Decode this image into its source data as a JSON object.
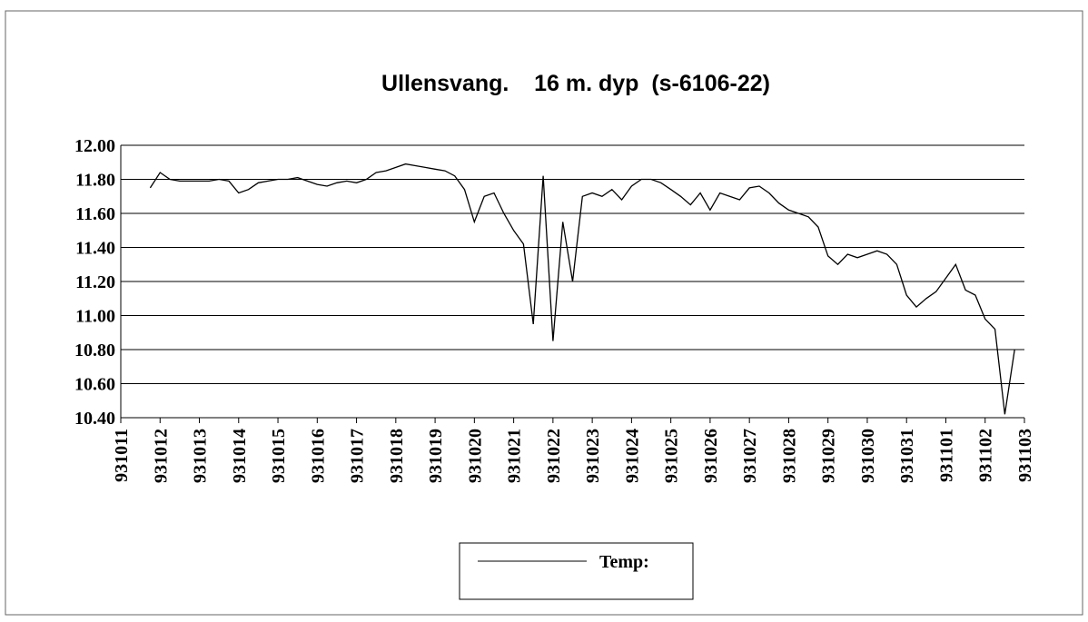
{
  "chart_data": {
    "type": "line",
    "title": "Ullensvang.    16 m. dyp  (s-6106-22)",
    "categories": [
      "931011",
      null,
      null,
      null,
      "931012",
      null,
      null,
      null,
      "931013",
      null,
      null,
      null,
      "931014",
      null,
      null,
      null,
      "931015",
      null,
      null,
      null,
      "931016",
      null,
      null,
      null,
      "931017",
      null,
      null,
      null,
      "931018",
      null,
      null,
      null,
      "931019",
      null,
      null,
      null,
      "931020",
      null,
      null,
      null,
      "931021",
      null,
      null,
      null,
      "931022",
      null,
      null,
      null,
      "931023",
      null,
      null,
      null,
      "931024",
      null,
      null,
      null,
      "931025",
      null,
      null,
      null,
      "931026",
      null,
      null,
      null,
      "931027",
      null,
      null,
      null,
      "931028",
      null,
      null,
      null,
      "931029",
      null,
      null,
      null,
      "931030",
      null,
      null,
      null,
      "931031",
      null,
      null,
      null,
      "931101",
      null,
      null,
      null,
      "931102",
      null,
      null,
      null,
      "931103"
    ],
    "series": [
      {
        "name": "Temp:",
        "color": "#000000",
        "values": [
          null,
          null,
          null,
          11.75,
          11.84,
          11.8,
          11.79,
          11.79,
          11.79,
          11.79,
          11.8,
          11.79,
          11.72,
          11.74,
          11.78,
          11.79,
          11.8,
          11.8,
          11.81,
          11.79,
          11.77,
          11.76,
          11.78,
          11.79,
          11.78,
          11.8,
          11.84,
          11.85,
          11.87,
          11.89,
          11.88,
          11.87,
          11.86,
          11.85,
          11.82,
          11.74,
          11.55,
          11.7,
          11.72,
          11.6,
          11.5,
          11.42,
          10.95,
          11.82,
          10.85,
          11.55,
          11.2,
          11.7,
          11.72,
          11.7,
          11.74,
          11.68,
          11.76,
          11.8,
          11.8,
          11.78,
          11.74,
          11.7,
          11.65,
          11.72,
          11.62,
          11.72,
          11.7,
          11.68,
          11.75,
          11.76,
          11.72,
          11.66,
          11.62,
          11.6,
          11.58,
          11.52,
          11.35,
          11.3,
          11.36,
          11.34,
          11.36,
          11.38,
          11.36,
          11.3,
          11.12,
          11.05,
          11.1,
          11.14,
          11.22,
          11.3,
          11.15,
          11.12,
          10.98,
          10.92,
          10.42,
          10.8,
          null
        ]
      }
    ],
    "ylim": [
      10.4,
      12.0
    ],
    "yticks": [
      {
        "value": 10.4,
        "label": "10.40"
      },
      {
        "value": 10.6,
        "label": "10.60"
      },
      {
        "value": 10.8,
        "label": "10.80"
      },
      {
        "value": 11.0,
        "label": "11.00"
      },
      {
        "value": 11.2,
        "label": "11.20"
      },
      {
        "value": 11.4,
        "label": "11.40"
      },
      {
        "value": 11.6,
        "label": "11.60"
      },
      {
        "value": 11.8,
        "label": "11.80"
      },
      {
        "value": 12.0,
        "label": "12.00"
      }
    ],
    "grid": true,
    "legend": "bottom"
  }
}
